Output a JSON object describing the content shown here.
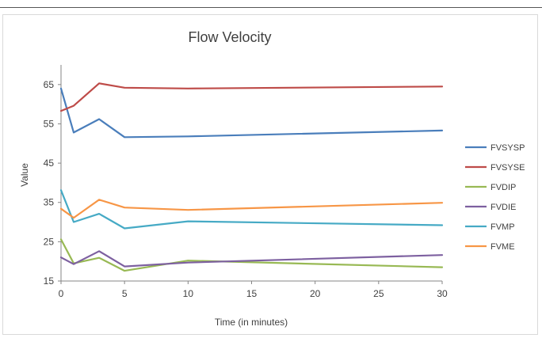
{
  "chart_data": {
    "type": "line",
    "title": "Flow Velocity",
    "xlabel": "Time (in minutes)",
    "ylabel": "Value",
    "xlim": [
      0,
      30
    ],
    "ylim": [
      15,
      70
    ],
    "x_ticks": [
      0,
      5,
      10,
      15,
      20,
      25,
      30
    ],
    "y_ticks": [
      15,
      25,
      35,
      45,
      55,
      65
    ],
    "grid": false,
    "legend_position": "right",
    "x": [
      0,
      1,
      3,
      5,
      10,
      30
    ],
    "series": [
      {
        "name": "FVSYSP",
        "color": "#4a7ebb",
        "values": [
          64.0,
          52.8,
          56.2,
          51.6,
          51.8,
          53.3
        ]
      },
      {
        "name": "FVSYSE",
        "color": "#be4b48",
        "values": [
          58.3,
          59.6,
          65.3,
          64.2,
          64.0,
          64.5
        ]
      },
      {
        "name": "FVDIP",
        "color": "#98b954",
        "values": [
          25.6,
          19.5,
          20.9,
          17.6,
          20.2,
          18.5
        ]
      },
      {
        "name": "FVDIE",
        "color": "#7d60a0",
        "values": [
          21.0,
          19.3,
          22.6,
          18.7,
          19.7,
          21.6
        ]
      },
      {
        "name": "FVMP",
        "color": "#46aac5",
        "values": [
          38.1,
          30.0,
          32.1,
          28.4,
          30.2,
          29.2
        ]
      },
      {
        "name": "FVME",
        "color": "#f79646",
        "values": [
          33.4,
          31.1,
          35.7,
          33.7,
          33.1,
          34.9
        ]
      }
    ]
  }
}
